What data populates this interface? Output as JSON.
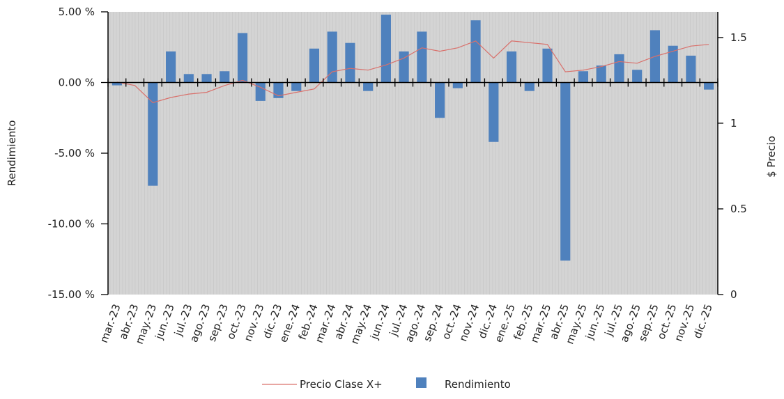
{
  "chart_data": {
    "type": "bar",
    "title": "",
    "ylabel": "Rendimiento",
    "y2label": "$ Precio",
    "ylim": [
      -15,
      5
    ],
    "y2lim": [
      0,
      1.65
    ],
    "y_ticks": [
      "5.00 %",
      "0.00 %",
      "-5.00 %",
      "-10.00 %",
      "-15.00 %"
    ],
    "y2_ticks": [
      "1.5",
      "1",
      "0.5",
      "0"
    ],
    "categories": [
      "mar.-23",
      "abr.-23",
      "may.-23",
      "jun.-23",
      "jul.-23",
      "ago.-23",
      "sep.-23",
      "oct.-23",
      "nov.-23",
      "dic.-23",
      "ene.-24",
      "feb.-24",
      "mar.-24",
      "abr.-24",
      "may.-24",
      "jun.-24",
      "jul.-24",
      "ago.-24",
      "sep.-24",
      "oct.-24",
      "nov.-24",
      "dic.-24",
      "ene.-25",
      "feb.-25",
      "mar.-25",
      "abr.-25",
      "may.-25",
      "jun.-25",
      "jul.-25",
      "ago.-25",
      "sep.-25",
      "oct.-25",
      "nov.-25",
      "dic.-25"
    ],
    "series": [
      {
        "name": "Rendimiento",
        "type": "bar",
        "color": "#4f81bd",
        "values": [
          -0.2,
          0.0,
          -7.3,
          2.2,
          0.6,
          0.6,
          0.8,
          3.5,
          -1.3,
          -1.1,
          -0.6,
          2.4,
          3.6,
          2.8,
          -0.6,
          4.8,
          2.2,
          3.6,
          -2.5,
          -0.4,
          4.4,
          -4.2,
          2.2,
          -0.6,
          2.4,
          -12.6,
          0.8,
          1.2,
          2.0,
          0.9,
          3.7,
          2.6,
          1.9,
          -0.5
        ]
      },
      {
        "name": "Precio Clase X+",
        "type": "line",
        "color": "#d9706b",
        "axis": "secondary",
        "values": [
          1.24,
          1.22,
          1.12,
          1.15,
          1.17,
          1.18,
          1.22,
          1.25,
          1.21,
          1.16,
          1.18,
          1.2,
          1.3,
          1.32,
          1.31,
          1.34,
          1.38,
          1.44,
          1.42,
          1.44,
          1.48,
          1.38,
          1.48,
          1.47,
          1.46,
          1.3,
          1.31,
          1.33,
          1.36,
          1.35,
          1.39,
          1.42,
          1.45,
          1.46
        ]
      }
    ],
    "legend": {
      "placement": "bottom-center"
    },
    "grid": true
  }
}
